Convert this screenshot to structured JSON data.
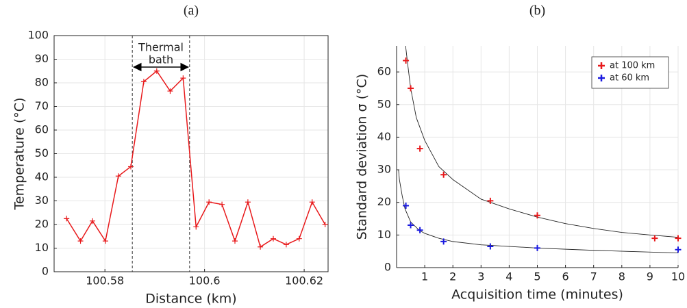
{
  "chart_data": [
    {
      "type": "line",
      "title": "(a)",
      "x_label": "Distance (km)",
      "y_label": "Temperature (°C)",
      "x": [
        100.5723,
        100.5751,
        100.5775,
        100.5801,
        100.5827,
        100.5852,
        100.5878,
        100.5904,
        100.5931,
        100.5957,
        100.5983,
        100.6009,
        100.6035,
        100.6061,
        100.6087,
        100.6112,
        100.6138,
        100.6164,
        100.619,
        100.6216,
        100.6242
      ],
      "series": [
        {
          "color": "#e8191b",
          "values": [
            22.5,
            13,
            21.5,
            13,
            40.5,
            44.5,
            80.5,
            85,
            76.5,
            82,
            19,
            29.5,
            28.5,
            13,
            29.5,
            10.5,
            14,
            11.5,
            14,
            29.5,
            20
          ]
        }
      ],
      "xlim": [
        100.5698,
        100.6248
      ],
      "xticks": [
        100.58,
        100.6,
        100.62
      ],
      "ylim": [
        0,
        100
      ],
      "yticks": [
        0,
        10,
        20,
        30,
        40,
        50,
        60,
        70,
        80,
        90,
        100
      ],
      "grid": true,
      "vlines": [
        100.5855,
        100.597
      ],
      "annotation": [
        "Thermal",
        "bath"
      ]
    },
    {
      "type": "scatter",
      "title": "(b)",
      "x_label": "Acquisition time (minutes)",
      "y_label": "Standard deviation σ (°C)",
      "series": [
        {
          "name": "at 100 km",
          "color": "#e8191b",
          "x": [
            0.33,
            0.5,
            0.83,
            1.67,
            3.33,
            5,
            9.17,
            10
          ],
          "values": [
            63.5,
            55,
            36.5,
            28.5,
            20.5,
            16,
            9,
            9
          ]
        },
        {
          "name": "at 60 km",
          "color": "#1a1ae0",
          "x": [
            0.33,
            0.5,
            0.83,
            1.67,
            3.33,
            5,
            10
          ],
          "values": [
            19,
            13,
            11.5,
            8,
            6.5,
            6,
            5.5
          ]
        }
      ],
      "fits": [
        {
          "color": "#222222",
          "x": [
            0.32,
            0.4,
            0.5,
            0.7,
            1,
            1.5,
            2,
            3,
            4,
            5,
            6,
            7,
            8,
            9,
            10
          ],
          "values": [
            68,
            62,
            55,
            46,
            39,
            31,
            27,
            21,
            18,
            15.5,
            13.5,
            12,
            10.8,
            10,
            9.3
          ]
        },
        {
          "color": "#222222",
          "x": [
            0.07,
            0.1,
            0.2,
            0.3,
            0.5,
            0.8,
            1,
            1.5,
            2,
            3,
            4,
            5,
            7,
            10
          ],
          "values": [
            30,
            27,
            22,
            18,
            14,
            11.5,
            10.5,
            9,
            8,
            7,
            6.5,
            6,
            5.3,
            4.5
          ]
        }
      ],
      "xlim": [
        0,
        10
      ],
      "xticks": [
        1,
        2,
        3,
        4,
        5,
        6,
        7,
        8,
        9,
        10
      ],
      "ylim": [
        0,
        68
      ],
      "yticks": [
        0,
        10,
        20,
        30,
        40,
        50,
        60
      ],
      "grid": true,
      "legend": "upper right"
    }
  ]
}
